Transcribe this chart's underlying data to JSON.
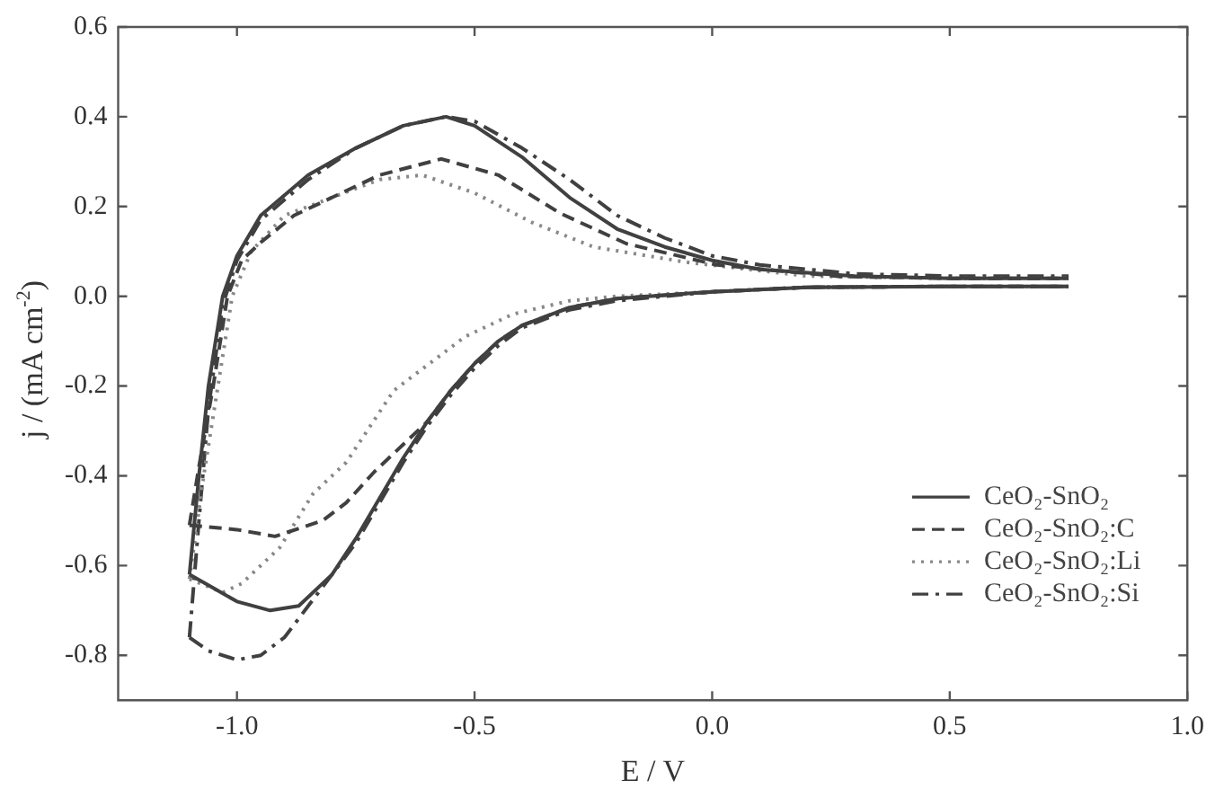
{
  "chart_data": {
    "type": "line",
    "xlabel": "E / V",
    "ylabel": "j / (mA cm$^{-2}$)",
    "xlim": [
      -1.25,
      1.0
    ],
    "ylim": [
      -0.9,
      0.6
    ],
    "xticks": [
      {
        "value": -1.0,
        "label": "-1.0"
      },
      -0.5,
      {
        "value": 0,
        "label": "0.0"
      },
      0.5,
      {
        "value": 1.0,
        "label": "1.0"
      }
    ],
    "yticks": [
      -0.8,
      -0.6,
      -0.4,
      -0.2,
      {
        "value": 0,
        "label": "0.0"
      },
      0.2,
      0.4,
      0.6
    ],
    "grid": false,
    "legend": "bottom right",
    "marker": "none",
    "series": [
      {
        "name": "CeO₂-SnO₂",
        "color": "#404040",
        "line_style": "solid",
        "x": [
          -1.1,
          -1.05,
          -1.0,
          -0.93,
          -0.87,
          -0.8,
          -0.75,
          -0.7,
          -0.65,
          -0.6,
          -0.55,
          -0.5,
          -0.45,
          -0.4,
          -0.3,
          -0.2,
          0,
          0.2,
          0.5,
          0.75
        ],
        "values": [
          -0.62,
          -0.65,
          -0.68,
          -0.7,
          -0.69,
          -0.62,
          -0.54,
          -0.45,
          -0.36,
          -0.28,
          -0.21,
          -0.15,
          -0.1,
          -0.065,
          -0.025,
          -0.005,
          0.01,
          0.02,
          0.022,
          0.022
        ]
      },
      {
        "color": "#404040",
        "line_style": "solid",
        "x": [
          -1.1,
          -1.08,
          -1.06,
          -1.03,
          -1.0,
          -0.95,
          -0.85,
          -0.75,
          -0.65,
          -0.56,
          -0.5,
          -0.4,
          -0.3,
          -0.2,
          -0.1,
          0,
          0.1,
          0.3,
          0.5,
          0.75
        ],
        "values": [
          -0.62,
          -0.4,
          -0.2,
          0.0,
          0.09,
          0.18,
          0.27,
          0.33,
          0.38,
          0.4,
          0.38,
          0.31,
          0.22,
          0.15,
          0.11,
          0.08,
          0.06,
          0.045,
          0.04,
          0.04
        ]
      },
      {
        "name": "CeO₂-SnO₂:C",
        "color": "#404040",
        "line_style": "dashed",
        "x": [
          -1.1,
          -1.0,
          -0.92,
          -0.82,
          -0.77,
          -0.71,
          -0.64,
          -0.6,
          -0.55,
          -0.5,
          -0.45,
          -0.4,
          -0.3,
          -0.2,
          0,
          0.2,
          0.5,
          0.75
        ],
        "values": [
          -0.51,
          -0.52,
          -0.535,
          -0.5,
          -0.46,
          -0.39,
          -0.32,
          -0.28,
          -0.21,
          -0.15,
          -0.1,
          -0.065,
          -0.025,
          -0.005,
          0.01,
          0.02,
          0.022,
          0.022
        ]
      },
      {
        "color": "#404040",
        "line_style": "dashed",
        "x": [
          -1.1,
          -1.08,
          -1.05,
          -1.02,
          -0.99,
          -0.95,
          -0.88,
          -0.8,
          -0.7,
          -0.57,
          -0.45,
          -0.32,
          -0.18,
          0.01,
          0.27,
          0.5,
          0.75
        ],
        "values": [
          -0.51,
          -0.38,
          -0.2,
          0.0,
          0.08,
          0.12,
          0.18,
          0.22,
          0.27,
          0.306,
          0.27,
          0.185,
          0.117,
          0.07,
          0.044,
          0.04,
          0.04
        ]
      },
      {
        "name": "CeO₂-SnO₂:Li",
        "color": "#888888",
        "line_style": "dotted",
        "x": [
          -1.1,
          -1.03,
          -0.99,
          -0.91,
          -0.84,
          -0.77,
          -0.67,
          -0.52,
          -0.42,
          -0.3,
          -0.2,
          0,
          0.2,
          0.5,
          0.75
        ],
        "values": [
          -0.63,
          -0.66,
          -0.64,
          -0.56,
          -0.44,
          -0.37,
          -0.21,
          -0.09,
          -0.04,
          -0.01,
          0.0,
          0.01,
          0.02,
          0.022,
          0.022
        ]
      },
      {
        "color": "#888888",
        "line_style": "dotted",
        "x": [
          -1.1,
          -1.07,
          -1.04,
          -1.01,
          -0.97,
          -0.9,
          -0.8,
          -0.7,
          -0.61,
          -0.5,
          -0.38,
          -0.25,
          -0.055,
          0.2,
          0.5,
          0.75
        ],
        "values": [
          -0.63,
          -0.4,
          -0.2,
          0.0,
          0.1,
          0.18,
          0.22,
          0.26,
          0.27,
          0.23,
          0.165,
          0.11,
          0.076,
          0.045,
          0.04,
          0.04
        ]
      },
      {
        "name": "CeO₂-SnO₂:Si",
        "color": "#404040",
        "line_style": "dashdot",
        "x": [
          -1.1,
          -1.06,
          -1.0,
          -0.95,
          -0.9,
          -0.85,
          -0.8,
          -0.75,
          -0.7,
          -0.65,
          -0.6,
          -0.55,
          -0.5,
          -0.45,
          -0.4,
          -0.3,
          -0.2,
          0,
          0.2,
          0.5,
          0.75
        ],
        "values": [
          -0.76,
          -0.79,
          -0.81,
          -0.8,
          -0.76,
          -0.69,
          -0.62,
          -0.55,
          -0.46,
          -0.37,
          -0.29,
          -0.22,
          -0.16,
          -0.11,
          -0.07,
          -0.03,
          -0.01,
          0.01,
          0.02,
          0.022,
          0.022
        ]
      },
      {
        "color": "#404040",
        "line_style": "dashdot",
        "x": [
          -1.1,
          -1.08,
          -1.06,
          -1.03,
          -1.0,
          -0.95,
          -0.85,
          -0.75,
          -0.65,
          -0.56,
          -0.5,
          -0.4,
          -0.3,
          -0.2,
          -0.1,
          0,
          0.1,
          0.3,
          0.5,
          0.75
        ],
        "values": [
          -0.76,
          -0.5,
          -0.25,
          -0.02,
          0.08,
          0.17,
          0.26,
          0.33,
          0.38,
          0.4,
          0.39,
          0.33,
          0.26,
          0.18,
          0.13,
          0.09,
          0.07,
          0.05,
          0.045,
          0.045
        ]
      }
    ]
  }
}
